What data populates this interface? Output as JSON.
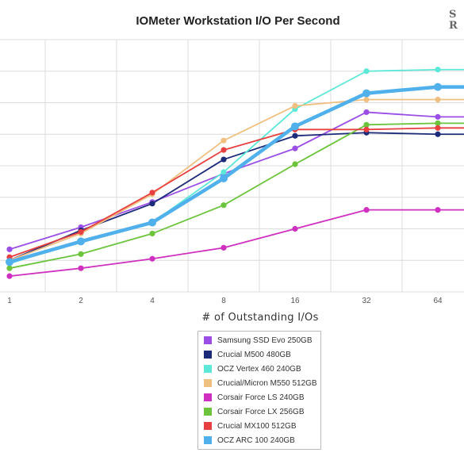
{
  "chart_data": {
    "type": "line",
    "title": "IOMeter Workstation I/O Per Second",
    "xlabel": "# of Outstanding I/Os",
    "ylabel": "",
    "x": [
      "1",
      "2",
      "4",
      "8",
      "16",
      "32",
      "64"
    ],
    "grid": true,
    "legend_position": "bottom",
    "series": [
      {
        "name": "Samsung SSD Evo 250GB",
        "color": "#9a4ee6",
        "values": [
          0.35,
          1.05,
          1.85,
          2.75,
          3.55,
          4.7,
          4.55
        ]
      },
      {
        "name": "Crucial M500 480GB",
        "color": "#1c2a7a",
        "values": [
          0.0,
          0.95,
          1.8,
          3.2,
          3.95,
          4.05,
          4.0
        ]
      },
      {
        "name": "OCZ Vertex 460 240GB",
        "color": "#5ce8d8",
        "values": [
          -0.1,
          0.6,
          1.2,
          2.8,
          4.8,
          6.0,
          6.05
        ]
      },
      {
        "name": "Crucial/Micron M550 512GB",
        "color": "#f0c080",
        "values": [
          0.0,
          0.85,
          2.1,
          3.8,
          4.9,
          5.1,
          5.1
        ]
      },
      {
        "name": "Corsair Force LS 240GB",
        "color": "#d030c0",
        "values": [
          -0.5,
          -0.25,
          0.05,
          0.4,
          1.0,
          1.6,
          1.6
        ]
      },
      {
        "name": "Corsair Force LX 256GB",
        "color": "#6cc43c",
        "values": [
          -0.25,
          0.2,
          0.85,
          1.75,
          3.05,
          4.3,
          4.35
        ]
      },
      {
        "name": "Crucial MX100 512GB",
        "color": "#e84040",
        "values": [
          0.1,
          0.9,
          2.15,
          3.5,
          4.15,
          4.15,
          4.2
        ]
      },
      {
        "name": "OCZ ARC 100 240GB",
        "color": "#50b0ec",
        "values": [
          -0.05,
          0.6,
          1.2,
          2.6,
          4.25,
          5.3,
          5.5
        ]
      }
    ],
    "ylim": [
      -1,
      7
    ]
  }
}
